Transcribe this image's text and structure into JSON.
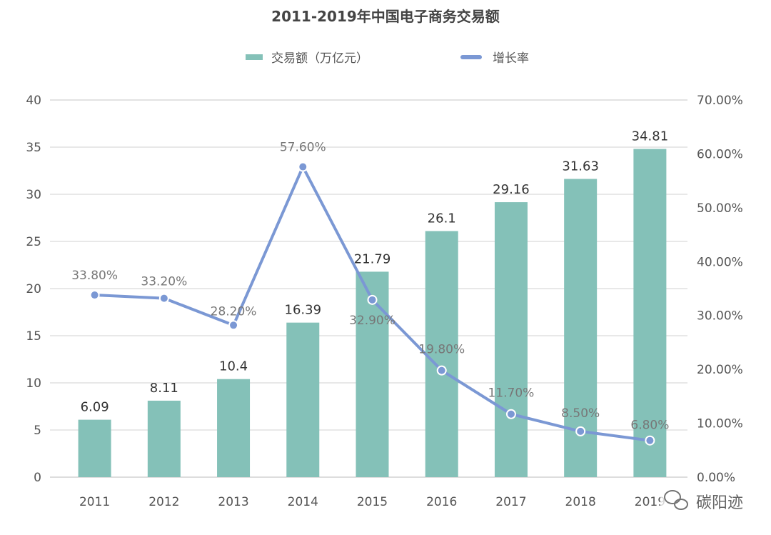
{
  "chart_data": {
    "type": "bar+line",
    "title": "2011-2019年中国电子商务交易额",
    "categories": [
      "2011",
      "2012",
      "2013",
      "2014",
      "2015",
      "2016",
      "2017",
      "2018",
      "2019"
    ],
    "series": [
      {
        "name": "交易额（万亿元）",
        "type": "bar",
        "axis": "left",
        "color": "#84c1b8",
        "values": [
          6.09,
          8.11,
          10.4,
          16.39,
          21.79,
          26.1,
          29.16,
          31.63,
          34.81
        ],
        "labels": [
          "6.09",
          "8.11",
          "10.4",
          "16.39",
          "21.79",
          "26.1",
          "29.16",
          "31.63",
          "34.81"
        ]
      },
      {
        "name": "增长率",
        "type": "line",
        "axis": "right",
        "color": "#7b98d4",
        "values": [
          33.8,
          33.2,
          28.2,
          57.6,
          32.9,
          19.8,
          11.7,
          8.5,
          6.8
        ],
        "labels": [
          "33.80%",
          "33.20%",
          "28.20%",
          "57.60%",
          "32.90%",
          "19.80%",
          "11.70%",
          "8.50%",
          "6.80%"
        ]
      }
    ],
    "left_axis": {
      "ylim": [
        0,
        40
      ],
      "ticks": [
        "0",
        "5",
        "10",
        "15",
        "20",
        "25",
        "30",
        "35",
        "40"
      ]
    },
    "right_axis": {
      "ylim": [
        0,
        70
      ],
      "ticks": [
        "0.00%",
        "10.00%",
        "20.00%",
        "30.00%",
        "40.00%",
        "50.00%",
        "60.00%",
        "70.00%"
      ]
    },
    "grid": true,
    "legend": "top"
  },
  "watermark": {
    "text": "碳阳迹",
    "icon": "wechat-icon"
  }
}
